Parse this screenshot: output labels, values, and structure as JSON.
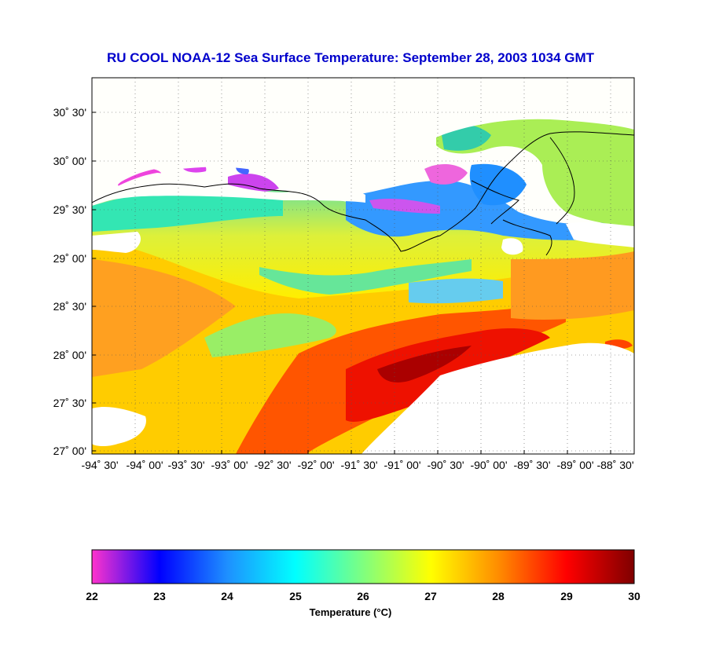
{
  "title": "RU COOL  NOAA-12  Sea Surface Temperature:  September 28, 2003 1034 GMT",
  "chart_data": {
    "type": "heatmap",
    "title": "RU COOL  NOAA-12  Sea Surface Temperature:  September 28, 2003 1034 GMT",
    "yticks": [
      {
        "label": "30˚ 30'",
        "lat": 30.5
      },
      {
        "label": "30˚ 00'",
        "lat": 30.0
      },
      {
        "label": "29˚ 30'",
        "lat": 29.5
      },
      {
        "label": "29˚ 00'",
        "lat": 29.0
      },
      {
        "label": "28˚ 30'",
        "lat": 28.5
      },
      {
        "label": "28˚ 00'",
        "lat": 28.0
      },
      {
        "label": "27˚ 30'",
        "lat": 27.5
      },
      {
        "label": "27˚ 00'",
        "lat": 27.0
      }
    ],
    "xticks": [
      {
        "label": "-94˚ 30'",
        "lon": -94.5
      },
      {
        "label": "-94˚ 00'",
        "lon": -94.0
      },
      {
        "label": "-93˚ 30'",
        "lon": -93.5
      },
      {
        "label": "-93˚ 00'",
        "lon": -93.0
      },
      {
        "label": "-92˚ 30'",
        "lon": -92.5
      },
      {
        "label": "-92˚ 00'",
        "lon": -92.0
      },
      {
        "label": "-91˚ 30'",
        "lon": -91.5
      },
      {
        "label": "-91˚ 00'",
        "lon": -91.0
      },
      {
        "label": "-90˚ 30'",
        "lon": -90.5
      },
      {
        "label": "-90˚ 00'",
        "lon": -90.0
      },
      {
        "label": "-89˚ 30'",
        "lon": -89.5
      },
      {
        "label": "-89˚ 00'",
        "lon": -89.0
      },
      {
        "label": "-88˚ 30'",
        "lon": -88.5
      }
    ],
    "lon_range": [
      -94.5,
      -88.25
    ],
    "lat_range": [
      26.95,
      30.85
    ],
    "grid": true,
    "colorbar": {
      "label": "Temperature (°C)",
      "range": [
        22,
        30
      ],
      "ticks": [
        "22",
        "23",
        "24",
        "25",
        "26",
        "27",
        "28",
        "29",
        "30"
      ],
      "colors": [
        "#ff33cc",
        "#0000ff",
        "#1e90ff",
        "#00ffff",
        "#7fff7f",
        "#ffff00",
        "#ff8c00",
        "#ff0000",
        "#7f0000"
      ]
    }
  }
}
